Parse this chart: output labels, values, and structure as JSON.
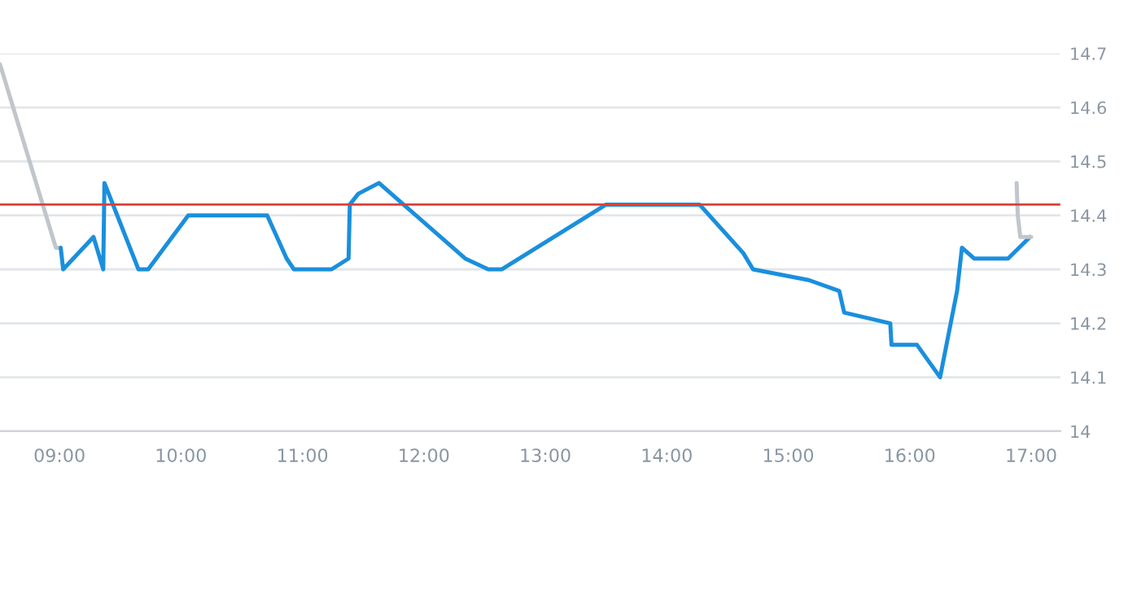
{
  "chart_data": {
    "type": "line",
    "series": [
      {
        "color": "#c0c6cc",
        "x": [
          8.51,
          8.97,
          9.0
        ],
        "values": [
          14.68,
          14.34,
          14.34
        ]
      },
      {
        "color": "#1a8fdd",
        "x": [
          9.01,
          9.03,
          9.28,
          9.36,
          9.37,
          9.65,
          9.73,
          10.06,
          10.71,
          10.87,
          10.93,
          11.24,
          11.38,
          11.39,
          11.46,
          11.63,
          12.34,
          12.53,
          12.64,
          13.5,
          14.27,
          14.63,
          14.71,
          15.17,
          15.42,
          15.46,
          15.84,
          15.85,
          16.06,
          16.25,
          16.39,
          16.43,
          16.53,
          16.81,
          16.99
        ],
        "values": [
          14.34,
          14.3,
          14.36,
          14.3,
          14.46,
          14.3,
          14.3,
          14.4,
          14.4,
          14.32,
          14.3,
          14.3,
          14.32,
          14.42,
          14.44,
          14.46,
          14.32,
          14.3,
          14.3,
          14.42,
          14.42,
          14.33,
          14.3,
          14.28,
          14.26,
          14.22,
          14.2,
          14.16,
          14.16,
          14.1,
          14.26,
          14.34,
          14.32,
          14.32,
          14.36
        ]
      },
      {
        "color": "#c0c6cc",
        "x": [
          16.88,
          16.89,
          16.91,
          17.0
        ],
        "values": [
          14.46,
          14.4,
          14.36,
          14.36
        ]
      }
    ],
    "xlim": [
      8.51,
      17.24
    ],
    "xticks": [
      {
        "value": 9,
        "label": "09:00"
      },
      {
        "value": 10,
        "label": "10:00"
      },
      {
        "value": 11,
        "label": "11:00"
      },
      {
        "value": 12,
        "label": "12:00"
      },
      {
        "value": 13,
        "label": "13:00"
      },
      {
        "value": 14,
        "label": "14:00"
      },
      {
        "value": 15,
        "label": "15:00"
      },
      {
        "value": 16,
        "label": "16:00"
      },
      {
        "value": 17,
        "label": "17:00"
      }
    ],
    "ylim": [
      14.0,
      14.7
    ],
    "yticks": [
      {
        "value": 14.0,
        "label": "14"
      },
      14.1,
      14.2,
      14.3,
      14.4,
      14.5,
      14.6,
      14.7
    ],
    "ref_lines": [
      {
        "axis": "y",
        "value": 14.42,
        "color": "#d9413a"
      }
    ],
    "grid": "y",
    "marker": "none",
    "line_style": "solid",
    "legend": false
  }
}
